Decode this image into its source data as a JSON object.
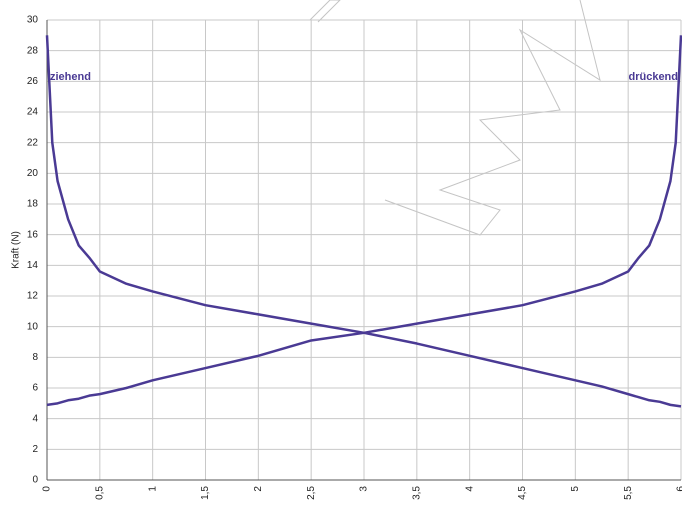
{
  "chart_data": {
    "type": "line",
    "y_label": "Kraft (N)",
    "x": [
      0,
      0.05,
      0.1,
      0.2,
      0.3,
      0.4,
      0.5,
      0.75,
      1,
      1.5,
      2,
      2.5,
      3,
      3.5,
      4,
      4.5,
      5,
      5.25,
      5.5,
      5.6,
      5.7,
      5.8,
      5.9,
      5.95,
      6
    ],
    "series": [
      {
        "name": "ziehend",
        "color": "#4a3a94",
        "values": [
          29,
          22,
          19.5,
          17,
          15.3,
          14.5,
          13.6,
          12.8,
          12.3,
          11.4,
          10.8,
          10.2,
          9.6,
          8.9,
          8.1,
          7.3,
          6.5,
          6.1,
          5.6,
          5.4,
          5.2,
          5.1,
          4.9,
          4.85,
          4.8
        ]
      },
      {
        "name": "drückend",
        "color": "#4a3a94",
        "values": [
          4.9,
          4.95,
          5.0,
          5.2,
          5.3,
          5.5,
          5.6,
          6.0,
          6.5,
          7.3,
          8.1,
          9.1,
          9.6,
          10.2,
          10.8,
          11.4,
          12.3,
          12.8,
          13.6,
          14.5,
          15.3,
          17,
          19.5,
          22,
          29
        ]
      }
    ],
    "xlim": [
      0,
      6
    ],
    "ylim": [
      0,
      30
    ],
    "xticks": [
      0,
      {
        "value": 0.5,
        "label": "0,5"
      },
      1,
      {
        "value": 1.5,
        "label": "1,5"
      },
      2,
      {
        "value": 2.5,
        "label": "2,5"
      },
      3,
      {
        "value": 3.5,
        "label": "3,5"
      },
      4,
      {
        "value": 4.5,
        "label": "4,5"
      },
      5,
      {
        "value": 5.5,
        "label": "5,5"
      },
      6
    ],
    "yticks": [
      0,
      2,
      4,
      6,
      8,
      10,
      12,
      14,
      16,
      18,
      20,
      22,
      24,
      26,
      28,
      30
    ],
    "grid": true
  }
}
